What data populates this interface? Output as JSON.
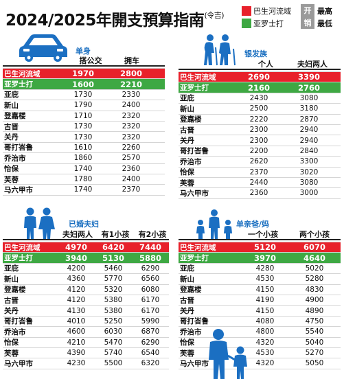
{
  "header": {
    "title": "2024/2025年開支預算指南",
    "title_suffix": "(令吉)"
  },
  "legend": {
    "highest_label": "巴生河流域",
    "lowest_label": "亚罗士打",
    "split_top": "开",
    "split_bottom": "销",
    "highest_level": "最高",
    "lowest_level": "最低",
    "highest_color": "#e8212b",
    "lowest_color": "#3ea843"
  },
  "colors": {
    "category": "#1a6fc0",
    "icon_blue": "#1b6fc2"
  },
  "panels": {
    "single": {
      "category": "单身",
      "icon": "car-icon",
      "columns": [
        "搭公交",
        "拥车"
      ],
      "rows": [
        {
          "city": "巴生河流域",
          "v": [
            "1970",
            "2800"
          ]
        },
        {
          "city": "亚罗士打",
          "v": [
            "1600",
            "2210"
          ]
        },
        {
          "city": "亚庇",
          "v": [
            "1730",
            "2330"
          ]
        },
        {
          "city": "新山",
          "v": [
            "1790",
            "2400"
          ]
        },
        {
          "city": "登嘉楼",
          "v": [
            "1710",
            "2320"
          ]
        },
        {
          "city": "古晋",
          "v": [
            "1730",
            "2320"
          ]
        },
        {
          "city": "关丹",
          "v": [
            "1730",
            "2320"
          ]
        },
        {
          "city": "哥打峇鲁",
          "v": [
            "1610",
            "2260"
          ]
        },
        {
          "city": "乔治市",
          "v": [
            "1860",
            "2570"
          ]
        },
        {
          "city": "怡保",
          "v": [
            "1740",
            "2360"
          ]
        },
        {
          "city": "芙蓉",
          "v": [
            "1780",
            "2400"
          ]
        },
        {
          "city": "马六甲市",
          "v": [
            "1740",
            "2370"
          ]
        }
      ]
    },
    "elderly": {
      "category": "银发族",
      "icon": "elderly-couple-icon",
      "columns": [
        "个人",
        "夫妇两人"
      ],
      "rows": [
        {
          "city": "巴生河流域",
          "v": [
            "2690",
            "3390"
          ]
        },
        {
          "city": "亚罗士打",
          "v": [
            "2160",
            "2760"
          ]
        },
        {
          "city": "亚庇",
          "v": [
            "2430",
            "3080"
          ]
        },
        {
          "city": "新山",
          "v": [
            "2500",
            "3180"
          ]
        },
        {
          "city": "登嘉楼",
          "v": [
            "2220",
            "2870"
          ]
        },
        {
          "city": "古晋",
          "v": [
            "2300",
            "2940"
          ]
        },
        {
          "city": "关丹",
          "v": [
            "2300",
            "2940"
          ]
        },
        {
          "city": "哥打峇鲁",
          "v": [
            "2200",
            "2840"
          ]
        },
        {
          "city": "乔治市",
          "v": [
            "2620",
            "3300"
          ]
        },
        {
          "city": "怡保",
          "v": [
            "2370",
            "3020"
          ]
        },
        {
          "city": "芙蓉",
          "v": [
            "2440",
            "3080"
          ]
        },
        {
          "city": "马六甲市",
          "v": [
            "2360",
            "3000"
          ]
        }
      ]
    },
    "married": {
      "category": "已婚夫妇",
      "icon": "couple-icon",
      "columns": [
        "夫妇两人",
        "有1小孩",
        "有2小孩"
      ],
      "rows": [
        {
          "city": "巴生河流域",
          "v": [
            "4970",
            "6420",
            "7440"
          ]
        },
        {
          "city": "亚罗士打",
          "v": [
            "3940",
            "5130",
            "5880"
          ]
        },
        {
          "city": "亚庇",
          "v": [
            "4200",
            "5460",
            "6290"
          ]
        },
        {
          "city": "新山",
          "v": [
            "4360",
            "5770",
            "6560"
          ]
        },
        {
          "city": "登嘉楼",
          "v": [
            "4120",
            "5320",
            "6080"
          ]
        },
        {
          "city": "古晋",
          "v": [
            "4120",
            "5380",
            "6170"
          ]
        },
        {
          "city": "关丹",
          "v": [
            "4130",
            "5380",
            "6170"
          ]
        },
        {
          "city": "哥打峇鲁",
          "v": [
            "4010",
            "5250",
            "5990"
          ]
        },
        {
          "city": "乔治市",
          "v": [
            "4600",
            "6030",
            "6870"
          ]
        },
        {
          "city": "怡保",
          "v": [
            "4210",
            "5470",
            "6290"
          ]
        },
        {
          "city": "芙蓉",
          "v": [
            "4390",
            "5740",
            "6540"
          ]
        },
        {
          "city": "马六甲市",
          "v": [
            "4230",
            "5500",
            "6320"
          ]
        }
      ]
    },
    "single_parent": {
      "category": "单亲爸/妈",
      "icon": "family-icon",
      "columns": [
        "一个小孩",
        "两个小孩"
      ],
      "rows": [
        {
          "city": "巴生河流域",
          "v": [
            "5120",
            "6070"
          ]
        },
        {
          "city": "亚罗士打",
          "v": [
            "3970",
            "4640"
          ]
        },
        {
          "city": "亚庇",
          "v": [
            "4280",
            "5020"
          ]
        },
        {
          "city": "新山",
          "v": [
            "4530",
            "5280"
          ]
        },
        {
          "city": "登嘉楼",
          "v": [
            "4150",
            "4830"
          ]
        },
        {
          "city": "古晋",
          "v": [
            "4190",
            "4900"
          ]
        },
        {
          "city": "关丹",
          "v": [
            "4150",
            "4890"
          ]
        },
        {
          "city": "哥打峇鲁",
          "v": [
            "4080",
            "4750"
          ]
        },
        {
          "city": "乔治市",
          "v": [
            "4800",
            "5540"
          ]
        },
        {
          "city": "怡保",
          "v": [
            "4320",
            "5040"
          ]
        },
        {
          "city": "芙蓉",
          "v": [
            "4530",
            "5270"
          ]
        },
        {
          "city": "马六甲市",
          "v": [
            "4320",
            "5050"
          ]
        }
      ]
    }
  }
}
